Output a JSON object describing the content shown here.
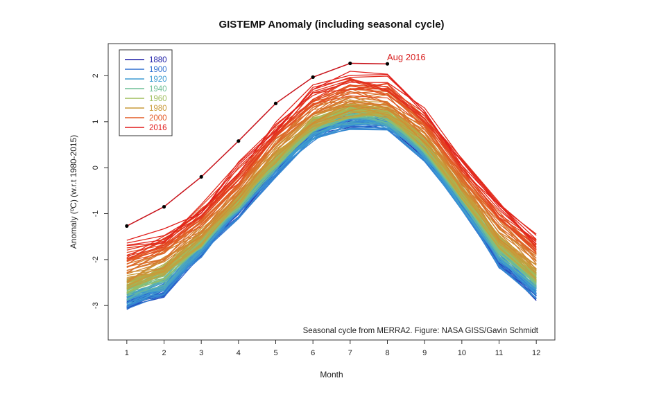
{
  "chart_data": {
    "type": "line",
    "title": "GISTEMP Anomaly (including seasonal cycle)",
    "xlabel": "Month",
    "ylabel": "Anomaly (ºC) (w.r.t 1980-2015)",
    "xlim": [
      0.5,
      12.5
    ],
    "ylim": [
      -3.75,
      2.7
    ],
    "xticks": [
      1,
      2,
      3,
      4,
      5,
      6,
      7,
      8,
      9,
      10,
      11,
      12
    ],
    "yticks": [
      -3,
      -2,
      -1,
      0,
      1,
      2
    ],
    "legend": [
      {
        "label": "1880",
        "color": "#1a1aa6"
      },
      {
        "label": "1900",
        "color": "#2e6fd0"
      },
      {
        "label": "1920",
        "color": "#3b9ad2"
      },
      {
        "label": "1940",
        "color": "#6fbf96"
      },
      {
        "label": "1960",
        "color": "#9fbd5c"
      },
      {
        "label": "1980",
        "color": "#c99a38"
      },
      {
        "label": "2000",
        "color": "#e35a25"
      },
      {
        "label": "2016",
        "color": "#e11a1a"
      }
    ],
    "base_cycle": [
      -2.35,
      -2.05,
      -1.3,
      -0.45,
      0.45,
      1.22,
      1.5,
      1.45,
      0.78,
      -0.28,
      -1.42,
      -2.12
    ],
    "year_start": 1880,
    "year_end": 2015,
    "highlight": {
      "label": "2016",
      "months": [
        1,
        2,
        3,
        4,
        5,
        6,
        7,
        8
      ],
      "values": [
        -1.27,
        -0.85,
        -0.2,
        0.58,
        1.4,
        1.97,
        2.27,
        2.26
      ],
      "color": "#c8141c",
      "annotation": "Aug 2016"
    },
    "annotation": "Seasonal cycle from MERRA2. Figure: NASA GISS/Gavin Schmidt",
    "colors": {
      "axis": "#333333",
      "highlight_point": "#000000"
    }
  }
}
